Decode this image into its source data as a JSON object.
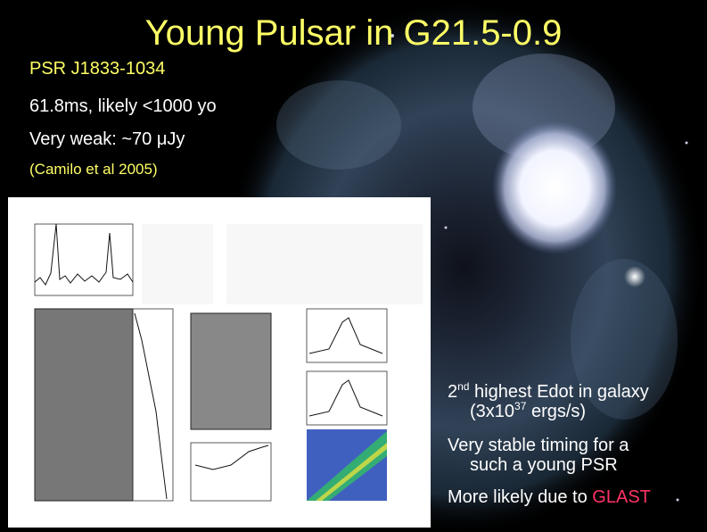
{
  "title": "Young Pulsar in G21.5-0.9",
  "info": {
    "psr": "PSR J1833-1034",
    "period": "61.8ms, likely <1000 yo",
    "flux": "Very weak:  ~70 μJy",
    "citation": "(Camilo et al 2005)"
  },
  "bullets": {
    "edot_pre": "2",
    "edot_sup": "nd",
    "edot_post": " highest Edot in galaxy",
    "edot_line2_pre": "(3x10",
    "edot_line2_sup": "37",
    "edot_line2_post": " ergs/s)",
    "timing_line1": "Very stable timing for a",
    "timing_line2": "such a young PSR",
    "glast_pre": "More likely due to ",
    "glast_word": "GLAST"
  },
  "colors": {
    "title": "#ffff66",
    "text": "#ffffff",
    "highlight": "#ff3366",
    "background": "#000000"
  }
}
